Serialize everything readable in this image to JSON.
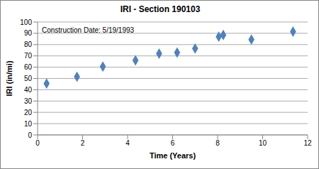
{
  "chart_data": {
    "type": "scatter",
    "title": "IRI - Section 190103",
    "annotation": "Construction Date: 5/19/1993",
    "x_label": "Time (Years)",
    "y_label": "IRI (in/mi)",
    "x": [
      0.4,
      1.75,
      2.9,
      4.35,
      5.4,
      6.2,
      7.0,
      8.05,
      8.25,
      9.5,
      11.35
    ],
    "values": [
      45.5,
      51.5,
      60.5,
      66,
      72,
      73,
      76.5,
      87,
      88.5,
      84.5,
      91.5
    ],
    "color": "#4f81bd",
    "marker": "diamond",
    "xlim": [
      0,
      12
    ],
    "xticks": [
      0,
      2,
      4,
      6,
      8,
      10,
      12
    ],
    "ylim": [
      0,
      100
    ],
    "yticks": [
      0,
      10,
      20,
      30,
      40,
      50,
      60,
      70,
      80,
      90,
      100
    ],
    "grid": true
  }
}
